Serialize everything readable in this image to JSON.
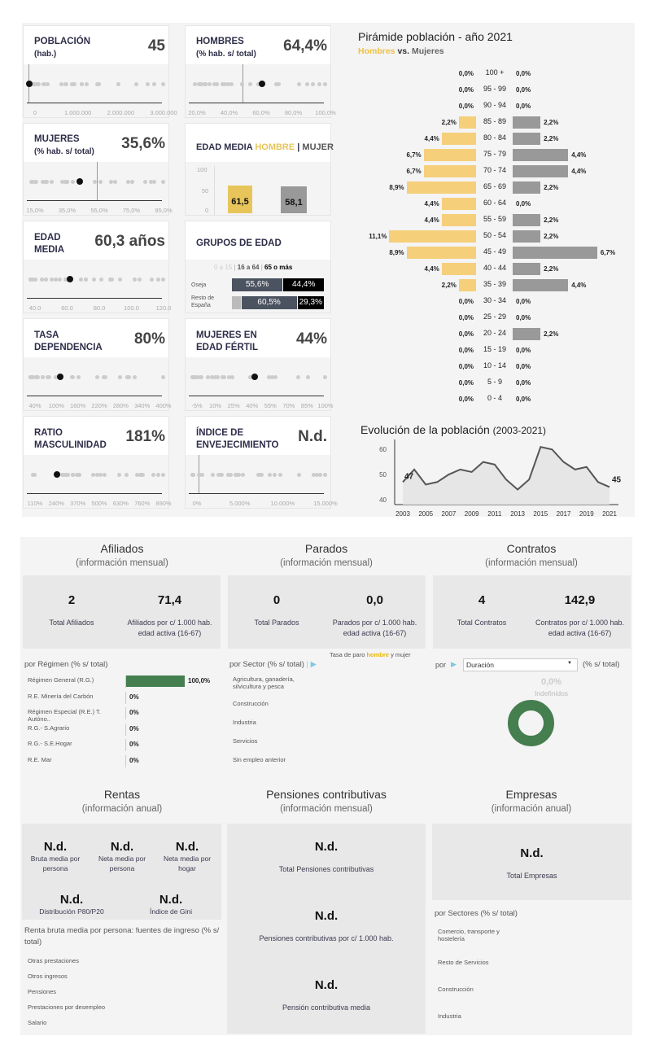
{
  "cards": [
    {
      "id": "poblacion",
      "title": "POBLACIÓN",
      "sub": "(hab.)",
      "value": "45",
      "ticks": [
        "0",
        "1.000.000",
        "2.000.000",
        "3.000.000"
      ],
      "range": [
        0,
        3400000
      ],
      "hl": 45,
      "ref": 0
    },
    {
      "id": "hombres",
      "title": "HOMBRES",
      "sub": "(% hab. s/ total)",
      "value": "64,4%",
      "ticks": [
        "20,0%",
        "40,0%",
        "60,0%",
        "80,0%",
        "100,0%"
      ],
      "range": [
        10,
        115
      ],
      "hl": 64.4,
      "ref": 50
    },
    {
      "id": "mujeres",
      "title": "MUJERES",
      "sub": "(% hab. s/ total)",
      "value": "35,6%",
      "ticks": [
        "15,0%",
        "35,0%",
        "55,0%",
        "75,0%",
        "95,0%"
      ],
      "range": [
        -5,
        105
      ],
      "hl": 35.6,
      "ref": 50
    },
    {
      "id": "edad-media",
      "title": "EDAD MEDIA",
      "sub": "",
      "value": "60,3 años",
      "ticks": [
        "40.0",
        "60.0",
        "80.0",
        "100.0",
        "120.0"
      ],
      "range": [
        32,
        128
      ],
      "hl": 60.3
    },
    {
      "id": "tasa-dependencia",
      "title": "TASA DEPENDENCIA",
      "sub": "",
      "value": "80%",
      "ticks": [
        "40%",
        "100%",
        "160%",
        "220%",
        "280%",
        "340%",
        "400%"
      ],
      "range": [
        -20,
        420
      ],
      "hl": 80
    },
    {
      "id": "mujeres-edad-fertil",
      "title": "MUJERES EN EDAD FÉRTIL",
      "sub": "",
      "value": "44%",
      "ticks": [
        "-5%",
        "10%",
        "25%",
        "40%",
        "55%",
        "70%",
        "85%",
        "100%"
      ],
      "range": [
        -5,
        100
      ],
      "hl": 44
    },
    {
      "id": "ratio-masculinidad",
      "title": "RATIO MASCULINIDAD",
      "sub": "",
      "value": "181%",
      "ticks": [
        "110%",
        "240%",
        "370%",
        "500%",
        "630%",
        "760%",
        "890%"
      ],
      "range": [
        0,
        900
      ],
      "hl": 181
    },
    {
      "id": "indice-envejecimiento",
      "title": "ÍNDICE DE ENVEJECIMIENTO",
      "sub": "",
      "value": "N.d.",
      "ticks": [
        "0%",
        "5.000%",
        "10.000%",
        "15.000%"
      ],
      "range": [
        -1000,
        16000
      ],
      "hl": null,
      "ref": 0
    }
  ],
  "edad_media": {
    "title": "EDAD MEDIA",
    "hombre": "HOMBRE",
    "sep": "|",
    "mujer": "MUJER",
    "ticks": [
      "100",
      "50",
      "0"
    ],
    "hombre_value": 61.5,
    "hombre_label": "61,5",
    "mujer_value": 58.1,
    "mujer_label": "58,1",
    "colors": {
      "hombre": "#e8c55a",
      "mujer": "#999999"
    }
  },
  "grupos": {
    "title": "GRUPOS DE EDAD",
    "legend": [
      "0 a 15",
      "16 a 64",
      "65 o más"
    ],
    "rows": [
      {
        "name": "Oseja",
        "values": [
          0,
          55.6,
          44.4
        ],
        "labels": [
          "",
          "55,6%",
          "44,4%"
        ]
      },
      {
        "name": "Resto de España",
        "values": [
          10.2,
          60.5,
          29.3
        ],
        "labels": [
          "",
          "60,5%",
          "29,3%"
        ]
      }
    ]
  },
  "pyramid": {
    "title": "Pirámide población - año 2021",
    "men": "Hombres",
    "vs": "vs.",
    "women": "Mujeres",
    "ages": [
      "100 +",
      "95 - 99",
      "90 - 94",
      "85 - 89",
      "80 - 84",
      "75 - 79",
      "70 - 74",
      "65 - 69",
      "60 - 64",
      "55 - 59",
      "50 - 54",
      "45 - 49",
      "40 - 44",
      "35 - 39",
      "30 - 34",
      "25 - 29",
      "20 - 24",
      "15 - 19",
      "10 - 14",
      "5 - 9",
      "0 - 4"
    ],
    "men_values": [
      0,
      0,
      0,
      2.2,
      4.4,
      6.7,
      6.7,
      8.9,
      4.4,
      4.4,
      11.1,
      8.9,
      4.4,
      2.2,
      0,
      0,
      0,
      0,
      0,
      0,
      0
    ],
    "women_values": [
      0,
      0,
      0,
      2.2,
      2.2,
      4.4,
      4.4,
      2.2,
      0,
      2.2,
      2.2,
      6.7,
      2.2,
      4.4,
      0,
      0,
      2.2,
      0,
      0,
      0,
      0
    ],
    "colors": {
      "men": "#f5cf7a",
      "women": "#999999"
    }
  },
  "chart_data": {
    "type": "area",
    "title": "Evolución de la población",
    "subtitle": "(2003-2021)",
    "x": [
      2003,
      2004,
      2005,
      2006,
      2007,
      2008,
      2009,
      2010,
      2011,
      2012,
      2013,
      2014,
      2015,
      2016,
      2017,
      2018,
      2019,
      2020,
      2021
    ],
    "values": [
      47,
      52,
      46,
      47,
      50,
      52,
      51,
      55,
      54,
      48,
      44,
      48,
      61,
      60,
      55,
      52,
      53,
      47,
      45
    ],
    "xticks": [
      "2003",
      "2005",
      "2007",
      "2009",
      "2011",
      "2013",
      "2015",
      "2017",
      "2019",
      "2021"
    ],
    "yticks": [
      "60",
      "50",
      "40"
    ],
    "ylim": [
      38,
      63
    ],
    "first_label": "47",
    "last_label": "45",
    "grid": false
  },
  "afiliados": {
    "title": "Afiliados",
    "sub": "(información mensual)",
    "total": "2",
    "total_label": "Total Afiliados",
    "ratio": "71,4",
    "ratio_label": "Afiliados por c/ 1.000 hab. edad activa (16-67)",
    "by": "por Régimen (% s/ total)",
    "rows": [
      {
        "name": "Régimen General (R.G.)",
        "value": 100,
        "label": "100,0%"
      },
      {
        "name": "R.E. Minería del Carbón",
        "value": 0,
        "label": "0%"
      },
      {
        "name": "Régimen Especial (R.E.) T. Autóno..",
        "value": 0,
        "label": "0%"
      },
      {
        "name": "R.G.- S.Agrario",
        "value": 0,
        "label": "0%"
      },
      {
        "name": "R.G.- S.E.Hogar",
        "value": 0,
        "label": "0%"
      },
      {
        "name": "R.E. Mar",
        "value": 0,
        "label": "0%"
      }
    ],
    "color": "#457e4f"
  },
  "parados": {
    "title": "Parados",
    "sub": "(información mensual)",
    "total": "0",
    "total_label": "Total Parados",
    "ratio": "0,0",
    "ratio_label": "Parados por c/ 1.000 hab. edad activa (16-67)",
    "tasa": "Tasa de paro",
    "hombre": "hombre",
    "y": "y mujer",
    "by": "por Sector (% s/ total)",
    "sep": "|",
    "sectors": [
      "Agricultura, ganadería, silvicultura y pesca",
      "Construcción",
      "Industria",
      "Servicios",
      "Sin empleo anterior"
    ]
  },
  "contratos": {
    "title": "Contratos",
    "sub": "(información mensual)",
    "total": "4",
    "total_label": "Total Contratos",
    "ratio": "142,9",
    "ratio_label": "Contratos por c/ 1.000 hab. edad activa (16-67)",
    "por": "por",
    "select": "Duración",
    "pct": "(% s/ total)",
    "donut_value": "0,0%",
    "donut_label": "Indefinidos",
    "donut_color": "#457e4f"
  },
  "rentas": {
    "title": "Rentas",
    "sub": "(información anual)",
    "items": [
      {
        "v": "N.d.",
        "l": "Bruta media por persona"
      },
      {
        "v": "N.d.",
        "l": "Neta media por persona"
      },
      {
        "v": "N.d.",
        "l": "Neta media por hogar"
      },
      {
        "v": "N.d.",
        "l": "Distribución P80/P20"
      },
      {
        "v": "N.d.",
        "l": "Índice de Gini"
      }
    ],
    "by": "Renta bruta media por persona: fuentes de ingreso (% s/ total)",
    "sources": [
      "Otras prestaciones",
      "Otros ingresos",
      "Pensiones",
      "Prestaciones por desempleo",
      "Salario"
    ]
  },
  "pensiones": {
    "title": "Pensiones contributivas",
    "sub": "(información mensual)",
    "items": [
      {
        "v": "N.d.",
        "l": "Total Pensiones contributivas"
      },
      {
        "v": "N.d.",
        "l": "Pensiones contributivas por c/ 1.000 hab."
      },
      {
        "v": "N.d.",
        "l": "Pensión contributiva media"
      }
    ]
  },
  "empresas": {
    "title": "Empresas",
    "sub": "(información anual)",
    "total": "N.d.",
    "total_label": "Total Empresas",
    "by": "por Sectores (% s/ total)",
    "sectors": [
      "Comercio, transporte y hostelería",
      "Resto de Servicios",
      "Construcción",
      "Industria"
    ]
  }
}
